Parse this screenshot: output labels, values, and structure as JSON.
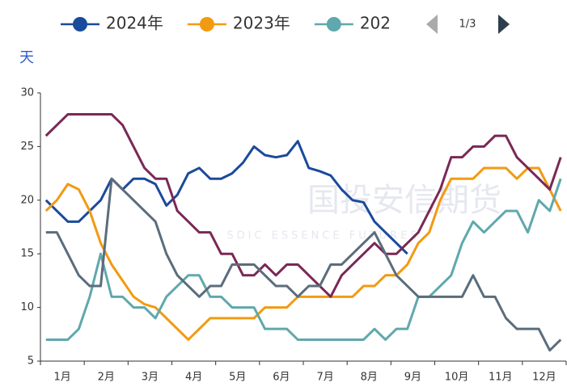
{
  "chart_data": {
    "type": "line",
    "y_label": "天",
    "legend_page": "1/3",
    "watermark": "国投安信期货",
    "watermark_sub": "SDIC ESSENCE FUTURES",
    "categories": [
      null,
      "1月",
      null,
      null,
      null,
      "2月",
      null,
      null,
      null,
      "3月",
      null,
      null,
      null,
      "4月",
      null,
      null,
      null,
      "5月",
      null,
      null,
      null,
      "6月",
      null,
      null,
      null,
      "7月",
      null,
      null,
      null,
      "8月",
      null,
      null,
      null,
      "9月",
      null,
      null,
      null,
      "10月",
      null,
      null,
      null,
      "11月",
      null,
      null,
      null,
      "12月",
      null,
      null
    ],
    "ylim": [
      5,
      30
    ],
    "yticks": [
      5,
      10,
      15,
      20,
      25,
      30
    ],
    "series": [
      {
        "name": "2024年",
        "color": "#1a4a9c",
        "values": [
          20,
          19,
          18,
          18,
          19,
          20,
          22,
          21,
          22,
          22,
          21.5,
          19.5,
          20.5,
          22.5,
          23,
          22,
          22,
          22.5,
          23.5,
          25,
          24.2,
          24,
          24.2,
          25.5,
          23,
          22.7,
          22.3,
          21,
          20,
          19.8,
          18,
          17,
          16,
          15,
          null,
          null,
          null,
          null,
          null,
          null,
          null,
          null,
          null,
          null,
          null,
          null,
          null,
          null
        ]
      },
      {
        "name": "2023年",
        "color": "#f29a12",
        "values": [
          19,
          20,
          21.5,
          21,
          19,
          16,
          14,
          12.5,
          11,
          10.3,
          10,
          9,
          8,
          7,
          8,
          9,
          9,
          9,
          9,
          9,
          10,
          10,
          10,
          11,
          11,
          11,
          11,
          11,
          11,
          12,
          12,
          13,
          13,
          14,
          16,
          17,
          20,
          22,
          22,
          22,
          23,
          23,
          23,
          22,
          23,
          23,
          21,
          19
        ]
      },
      {
        "name": "202",
        "color": "#5fa8ad",
        "values": [
          7,
          7,
          7,
          8,
          11,
          15,
          11,
          11,
          10,
          10,
          9,
          11,
          12,
          13,
          13,
          11,
          11,
          10,
          10,
          10,
          8,
          8,
          8,
          7,
          7,
          7,
          7,
          7,
          7,
          7,
          8,
          7,
          8,
          8,
          11,
          11,
          12,
          13,
          16,
          18,
          17,
          18,
          19,
          19,
          17,
          20,
          19,
          22
        ]
      },
      {
        "color": "#7a2856",
        "values": [
          26,
          27,
          28,
          28,
          28,
          28,
          28,
          27,
          25,
          23,
          22,
          22,
          19,
          18,
          17,
          17,
          15,
          15,
          13,
          13,
          14,
          13,
          14,
          14,
          13,
          12,
          11,
          13,
          14,
          15,
          16,
          15,
          15,
          16,
          17,
          19,
          21,
          24,
          24,
          25,
          25,
          26,
          26,
          24,
          23,
          22,
          21,
          24
        ]
      },
      {
        "color": "#5b6d7c",
        "values": [
          17,
          17,
          15,
          13,
          12,
          12,
          22,
          21,
          20,
          19,
          18,
          15,
          13,
          12,
          11,
          12,
          12,
          14,
          14,
          14,
          13,
          12,
          12,
          11,
          12,
          12,
          14,
          14,
          15,
          16,
          17,
          15,
          13,
          12,
          11,
          11,
          11,
          11,
          11,
          13,
          11,
          11,
          9,
          8,
          8,
          8,
          6,
          7
        ]
      }
    ]
  }
}
